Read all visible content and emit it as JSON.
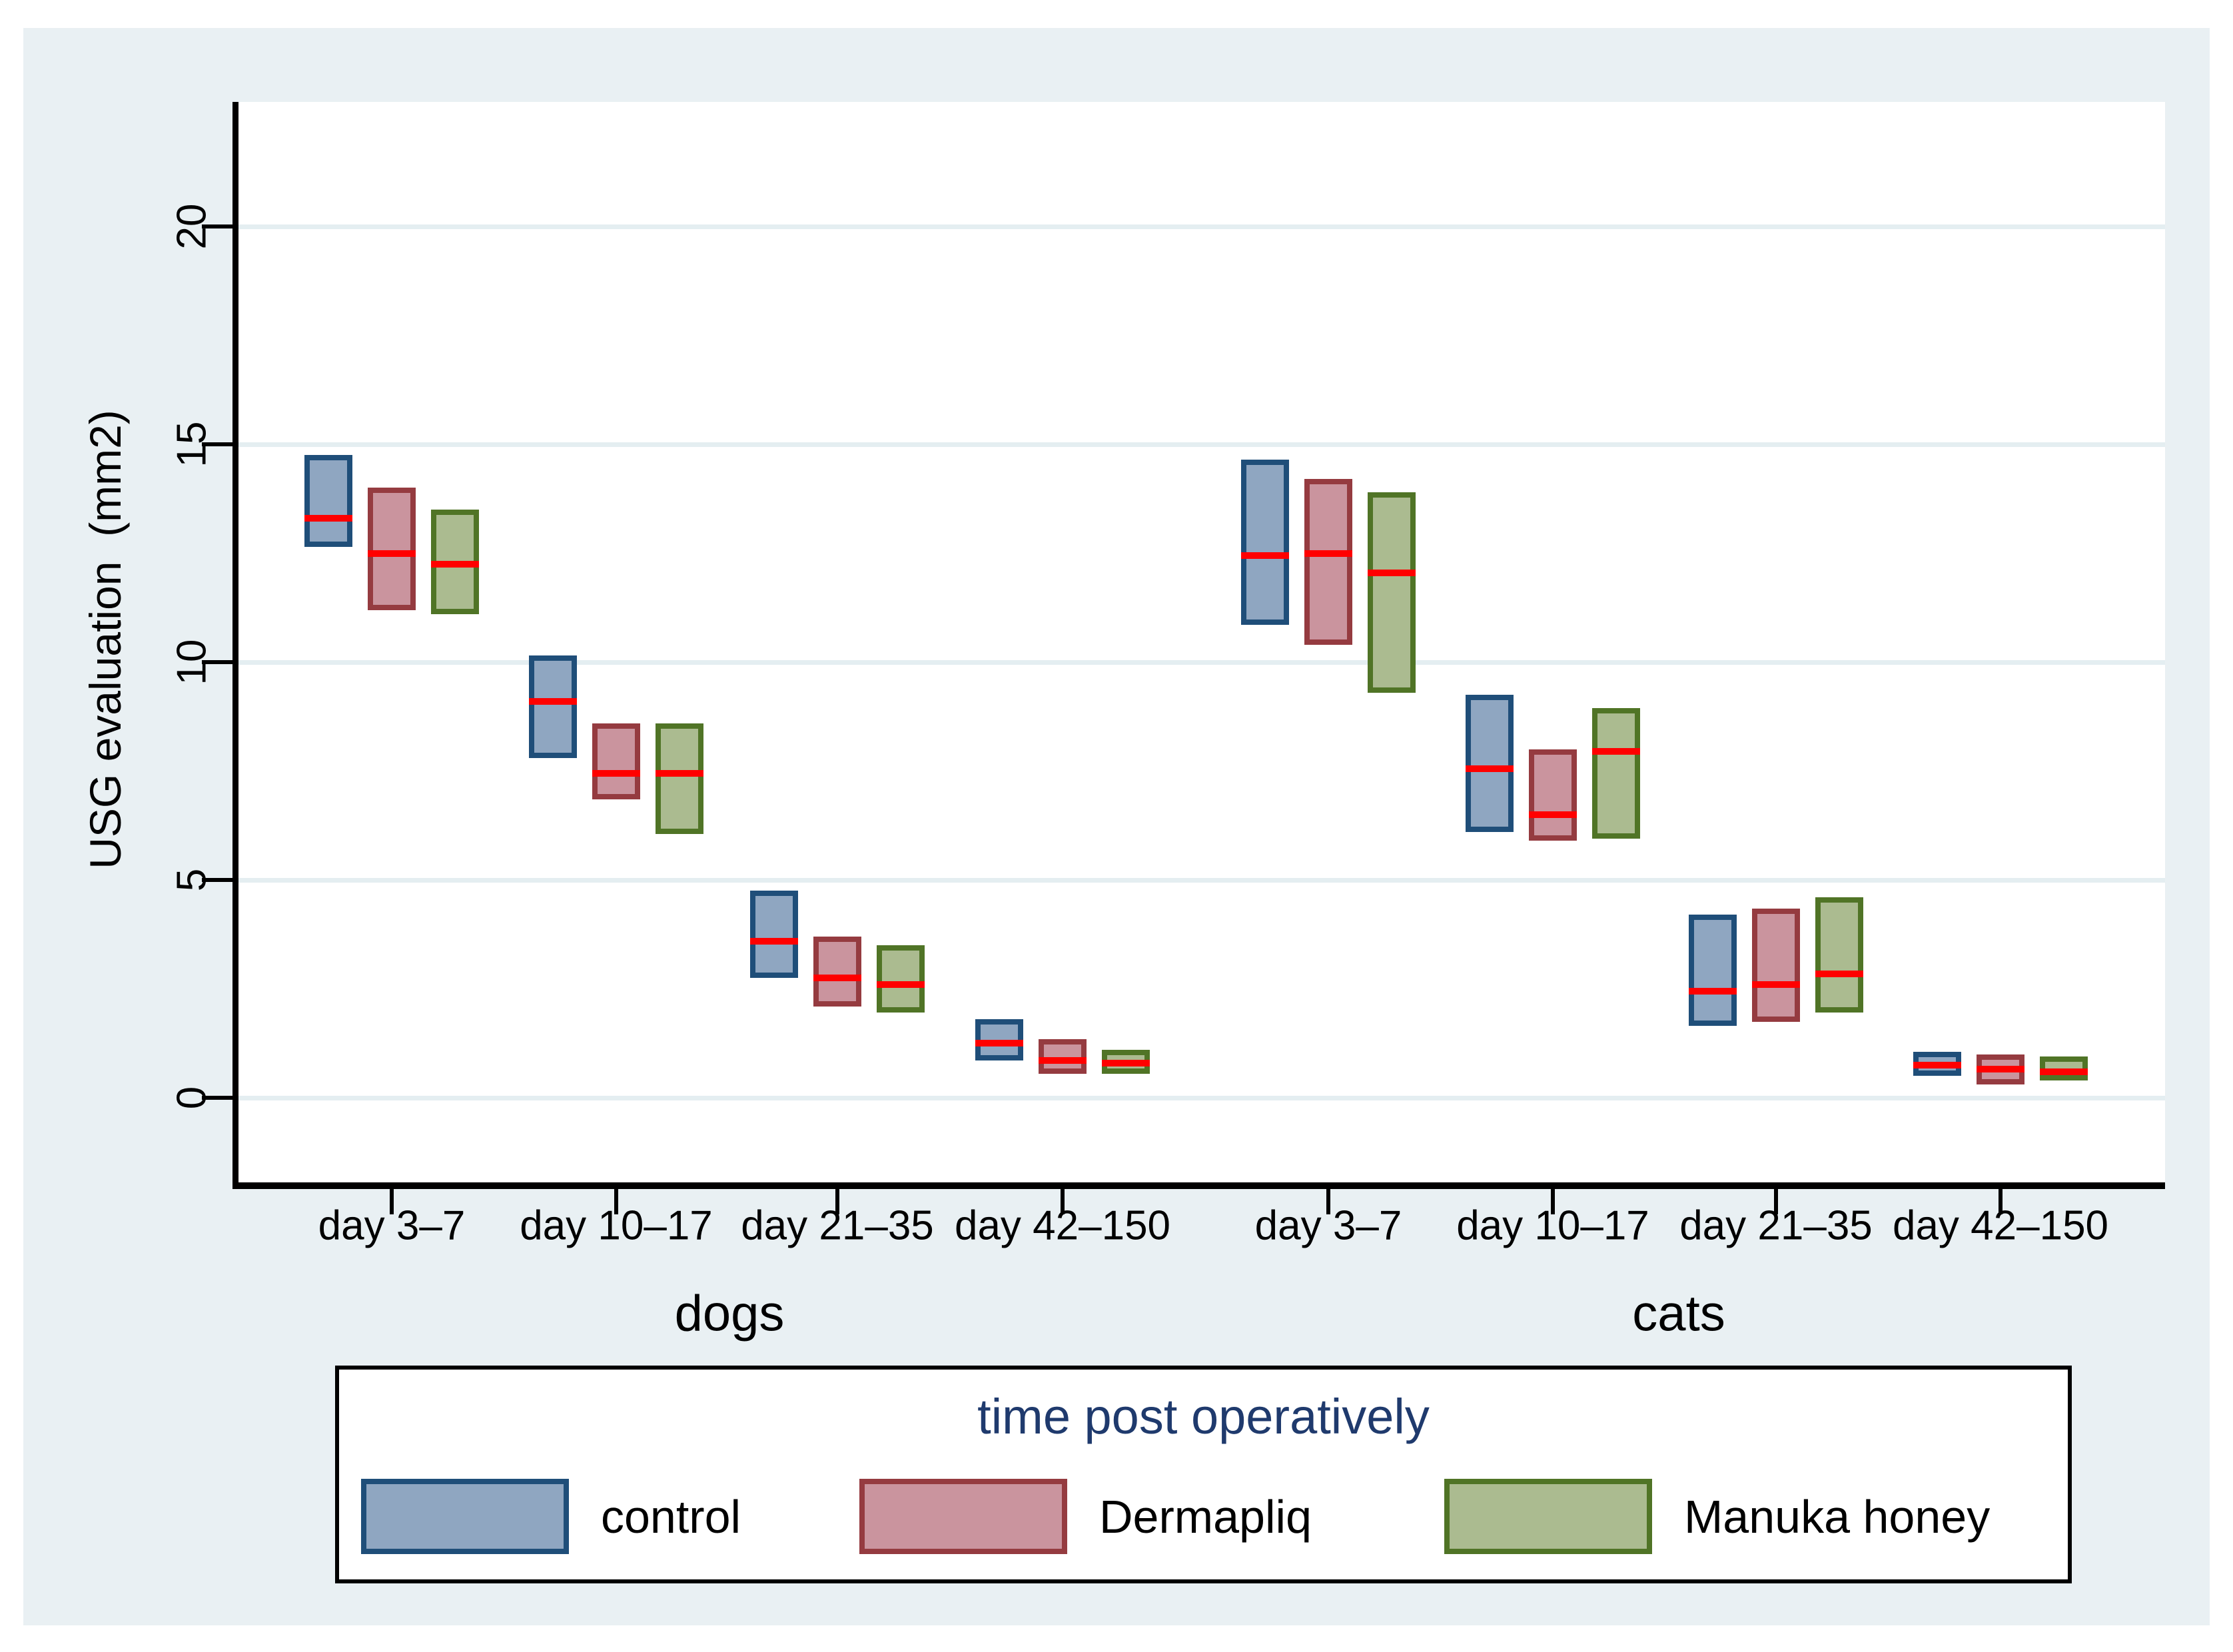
{
  "figure": {
    "canvas_color": "#e9f0f3",
    "plot_background": "#ffffff",
    "gridline_color": "#e4eef1",
    "axis_color": "#000000",
    "text_color": "#000000"
  },
  "chart_data": {
    "type": "box",
    "title": "",
    "xlabel": "",
    "ylabel": "USG evaluation  (mm2)",
    "yticks": [
      0,
      5,
      10,
      15,
      20
    ],
    "ylim": [
      -1.9,
      22.9
    ],
    "grid": true,
    "median_color": "#ff0000",
    "legend": {
      "title": "time post operatively",
      "title_color": "#1f3a6d",
      "position": "bottom",
      "entries": [
        "control",
        "Dermapliq",
        "Manuka honey"
      ]
    },
    "series": [
      {
        "name": "control",
        "fill": "#8fa6c1",
        "border": "#1f4e79"
      },
      {
        "name": "Dermapliq",
        "fill": "#ca949e",
        "border": "#953b40"
      },
      {
        "name": "Manuka honey",
        "fill": "#abbb90",
        "border": "#507426"
      }
    ],
    "panels": [
      {
        "label": "dogs",
        "categories": [
          "day 3–7",
          "day 10–17",
          "day 21–35",
          "day 42–150"
        ],
        "boxes": [
          [
            {
              "low": 12.65,
              "median": 13.3,
              "high": 14.75
            },
            {
              "low": 11.2,
              "median": 12.5,
              "high": 14.0
            },
            {
              "low": 11.1,
              "median": 12.25,
              "high": 13.5
            }
          ],
          [
            {
              "low": 7.8,
              "median": 9.1,
              "high": 10.15
            },
            {
              "low": 6.85,
              "median": 7.45,
              "high": 8.6
            },
            {
              "low": 6.05,
              "median": 7.45,
              "high": 8.6
            }
          ],
          [
            {
              "low": 2.75,
              "median": 3.6,
              "high": 4.75
            },
            {
              "low": 2.1,
              "median": 2.75,
              "high": 3.7
            },
            {
              "low": 1.95,
              "median": 2.6,
              "high": 3.5
            }
          ],
          [
            {
              "low": 0.85,
              "median": 1.25,
              "high": 1.8
            },
            {
              "low": 0.55,
              "median": 0.85,
              "high": 1.35
            },
            {
              "low": 0.55,
              "median": 0.8,
              "high": 1.1
            }
          ]
        ]
      },
      {
        "label": "cats",
        "categories": [
          "day 3–7",
          "day 10–17",
          "day 21–35",
          "day 42–150"
        ],
        "boxes": [
          [
            {
              "low": 10.85,
              "median": 12.45,
              "high": 14.65
            },
            {
              "low": 10.4,
              "median": 12.5,
              "high": 14.2
            },
            {
              "low": 9.3,
              "median": 12.05,
              "high": 13.9
            }
          ],
          [
            {
              "low": 6.1,
              "median": 7.55,
              "high": 9.25
            },
            {
              "low": 5.9,
              "median": 6.5,
              "high": 8.0
            },
            {
              "low": 5.95,
              "median": 7.95,
              "high": 8.95
            }
          ],
          [
            {
              "low": 1.65,
              "median": 2.45,
              "high": 4.2
            },
            {
              "low": 1.75,
              "median": 2.6,
              "high": 4.35
            },
            {
              "low": 1.95,
              "median": 2.85,
              "high": 4.6
            }
          ],
          [
            {
              "low": 0.5,
              "median": 0.75,
              "high": 1.05
            },
            {
              "low": 0.3,
              "median": 0.65,
              "high": 1.0
            },
            {
              "low": 0.4,
              "median": 0.6,
              "high": 0.95
            }
          ]
        ]
      }
    ]
  }
}
